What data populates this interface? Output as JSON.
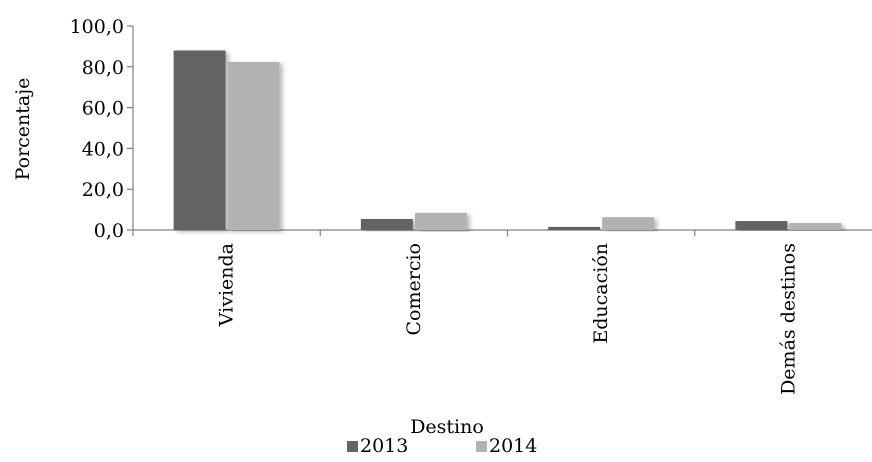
{
  "chart_data": {
    "type": "bar",
    "title": "",
    "xlabel": "Destino",
    "ylabel": "Porcentaje",
    "ylim": [
      0,
      100
    ],
    "yticks": [
      0,
      20,
      40,
      60,
      80,
      100
    ],
    "ytick_labels": [
      "0,0",
      "20,0",
      "40,0",
      "60,0",
      "80,0",
      "100,0"
    ],
    "categories": [
      "Vivienda",
      "Comercio",
      "Educación",
      "Demás destinos"
    ],
    "series": [
      {
        "name": "2013",
        "color": "#636363",
        "values": [
          88.0,
          5.4,
          1.5,
          4.4
        ]
      },
      {
        "name": "2014",
        "color": "#b2b2b2",
        "values": [
          82.4,
          8.4,
          6.3,
          3.4
        ]
      }
    ],
    "grid": false,
    "legend_position": "bottom"
  }
}
